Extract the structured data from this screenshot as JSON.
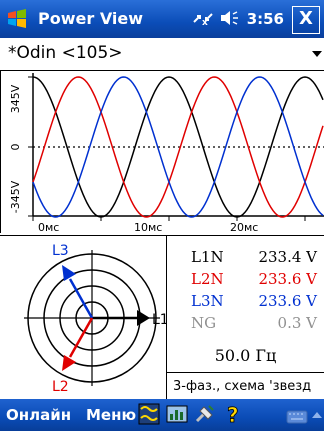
{
  "titlebar": {
    "title": "Power View",
    "clock": "3:56",
    "close": "X"
  },
  "device": {
    "selected": "*Odin <105>"
  },
  "waveform": {
    "y_labels": [
      "345V",
      "0",
      "-345V"
    ],
    "x_labels": [
      "0мс",
      "10мс",
      "20мс"
    ],
    "colors": {
      "L1": "#000000",
      "L2": "#e00000",
      "L3": "#0030d0"
    }
  },
  "vector": {
    "labels": {
      "L1": "L1",
      "L2": "L2",
      "L3": "L3"
    }
  },
  "readings": [
    {
      "label": "L1N",
      "value": "233.4 V",
      "color": "#000000"
    },
    {
      "label": "L2N",
      "value": "233.6 V",
      "color": "#e00000"
    },
    {
      "label": "L3N",
      "value": "233.6 V",
      "color": "#0030d0"
    },
    {
      "label": "NG",
      "value": "0.3 V",
      "color": "#909090"
    }
  ],
  "frequency": "50.0 Гц",
  "scheme": "3-фаз., схема 'звезд",
  "menu": {
    "online": "Онлайн",
    "menu": "Меню"
  }
}
